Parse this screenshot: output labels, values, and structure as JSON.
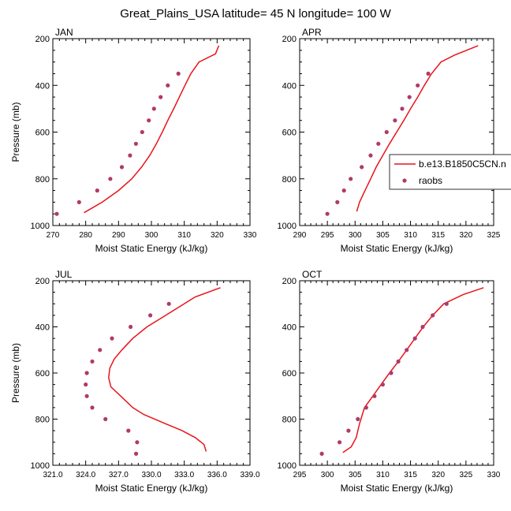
{
  "figure": {
    "title": "Great_Plains_USA  latitude= 45 N longitude= 100 W"
  },
  "legend": {
    "model_label": "b.e13.B1850C5CN.n",
    "obs_label": "raobs",
    "model_color": "#e8141b",
    "obs_color": "#b03a6a"
  },
  "chart_data": [
    {
      "type": "line",
      "panel": "JAN",
      "title": "JAN",
      "xlabel": "Moist Static Energy (kJ/kg)",
      "ylabel": "Pressure (mb)",
      "xlim": [
        270,
        330
      ],
      "ylim": [
        1000,
        200
      ],
      "y_reversed": true,
      "xticks": [
        270,
        280,
        290,
        300,
        310,
        320,
        330
      ],
      "xtick_labels": [
        "270",
        "280",
        "290",
        "300",
        "310",
        "320",
        "330"
      ],
      "yticks": [
        200,
        400,
        600,
        800,
        1000
      ],
      "ytick_labels": [
        "200",
        "400",
        "600",
        "800",
        "1000"
      ],
      "series": [
        {
          "name": "b.e13.B1850C5CN.n",
          "kind": "line",
          "points": [
            [
              279.5,
              945
            ],
            [
              285,
              900
            ],
            [
              290,
              850
            ],
            [
              294,
              800
            ],
            [
              297,
              750
            ],
            [
              299.5,
              700
            ],
            [
              301.5,
              650
            ],
            [
              303.3,
              600
            ],
            [
              305,
              550
            ],
            [
              306.8,
              500
            ],
            [
              308.5,
              450
            ],
            [
              310.2,
              400
            ],
            [
              312,
              350
            ],
            [
              314.5,
              300
            ],
            [
              319.5,
              265
            ],
            [
              320.5,
              230
            ]
          ]
        },
        {
          "name": "raobs",
          "kind": "scatter",
          "points": [
            [
              271.2,
              950
            ],
            [
              278,
              900
            ],
            [
              283.5,
              850
            ],
            [
              287.5,
              800
            ],
            [
              291,
              750
            ],
            [
              293.5,
              700
            ],
            [
              295.3,
              650
            ],
            [
              297.2,
              600
            ],
            [
              299.2,
              550
            ],
            [
              300.8,
              500
            ],
            [
              302.8,
              450
            ],
            [
              305,
              400
            ],
            [
              308.2,
              350
            ]
          ]
        }
      ]
    },
    {
      "type": "line",
      "panel": "APR",
      "title": "APR",
      "xlabel": "Moist Static Energy (kJ/kg)",
      "ylabel": "",
      "xlim": [
        290,
        325
      ],
      "ylim": [
        1000,
        200
      ],
      "y_reversed": true,
      "xticks": [
        290,
        295,
        300,
        305,
        310,
        315,
        320,
        325
      ],
      "xtick_labels": [
        "290",
        "295",
        "300",
        "305",
        "310",
        "315",
        "320",
        "325"
      ],
      "yticks": [
        200,
        400,
        600,
        800,
        1000
      ],
      "ytick_labels": [
        "200",
        "400",
        "600",
        "800",
        "1000"
      ],
      "series": [
        {
          "name": "b.e13.B1850C5CN.n",
          "kind": "line",
          "points": [
            [
              300.3,
              940
            ],
            [
              300.8,
              900
            ],
            [
              301.8,
              850
            ],
            [
              302.8,
              800
            ],
            [
              303.8,
              750
            ],
            [
              305,
              700
            ],
            [
              306.2,
              650
            ],
            [
              307.5,
              600
            ],
            [
              308.8,
              550
            ],
            [
              310,
              500
            ],
            [
              311.3,
              450
            ],
            [
              312.5,
              400
            ],
            [
              313.8,
              350
            ],
            [
              315.5,
              300
            ],
            [
              318,
              270
            ],
            [
              322.2,
              230
            ]
          ]
        },
        {
          "name": "raobs",
          "kind": "scatter",
          "points": [
            [
              295,
              950
            ],
            [
              296.8,
              900
            ],
            [
              298,
              850
            ],
            [
              299.2,
              800
            ],
            [
              301.2,
              750
            ],
            [
              302.8,
              700
            ],
            [
              304.2,
              650
            ],
            [
              305.7,
              600
            ],
            [
              307.2,
              550
            ],
            [
              308.5,
              500
            ],
            [
              309.8,
              450
            ],
            [
              311.3,
              400
            ],
            [
              313.2,
              350
            ]
          ]
        }
      ]
    },
    {
      "type": "line",
      "panel": "JUL",
      "title": "JUL",
      "xlabel": "Moist Static Energy (kJ/kg)",
      "ylabel": "Pressure (mb)",
      "xlim": [
        321,
        339
      ],
      "ylim": [
        1000,
        200
      ],
      "y_reversed": true,
      "xticks": [
        321,
        324,
        327,
        330,
        333,
        336,
        339
      ],
      "xtick_labels": [
        "321.0",
        "324.0",
        "327.0",
        "330.0",
        "333.0",
        "336.0",
        "339.0"
      ],
      "yticks": [
        200,
        400,
        600,
        800,
        1000
      ],
      "ytick_labels": [
        "200",
        "400",
        "600",
        "800",
        "1000"
      ],
      "series": [
        {
          "name": "b.e13.B1850C5CN.n",
          "kind": "line",
          "points": [
            [
              335,
              940
            ],
            [
              334.8,
              910
            ],
            [
              334,
              880
            ],
            [
              332.8,
              850
            ],
            [
              331.3,
              820
            ],
            [
              329.3,
              780
            ],
            [
              328.3,
              750
            ],
            [
              327.2,
              700
            ],
            [
              326.3,
              660
            ],
            [
              326.1,
              620
            ],
            [
              326.2,
              580
            ],
            [
              326.6,
              540
            ],
            [
              327.3,
              500
            ],
            [
              328.3,
              450
            ],
            [
              329.6,
              400
            ],
            [
              331.3,
              350
            ],
            [
              334,
              270
            ],
            [
              336.3,
              230
            ]
          ]
        },
        {
          "name": "raobs",
          "kind": "scatter",
          "points": [
            [
              328.6,
              950
            ],
            [
              328.7,
              900
            ],
            [
              327.9,
              850
            ],
            [
              325.8,
              800
            ],
            [
              324.6,
              750
            ],
            [
              324.1,
              700
            ],
            [
              324,
              650
            ],
            [
              324.1,
              600
            ],
            [
              324.6,
              550
            ],
            [
              325.3,
              500
            ],
            [
              326.4,
              450
            ],
            [
              328.1,
              400
            ],
            [
              329.9,
              350
            ],
            [
              331.6,
              300
            ]
          ]
        }
      ]
    },
    {
      "type": "line",
      "panel": "OCT",
      "title": "OCT",
      "xlabel": "Moist Static Energy (kJ/kg)",
      "ylabel": "",
      "xlim": [
        295,
        330
      ],
      "ylim": [
        1000,
        200
      ],
      "y_reversed": true,
      "xticks": [
        295,
        300,
        305,
        310,
        315,
        320,
        325,
        330
      ],
      "xtick_labels": [
        "295",
        "300",
        "305",
        "310",
        "315",
        "320",
        "325",
        "330"
      ],
      "yticks": [
        200,
        400,
        600,
        800,
        1000
      ],
      "ytick_labels": [
        "200",
        "400",
        "600",
        "800",
        "1000"
      ],
      "series": [
        {
          "name": "b.e13.B1850C5CN.n",
          "kind": "line",
          "points": [
            [
              302.8,
              945
            ],
            [
              304.3,
              920
            ],
            [
              305.2,
              880
            ],
            [
              305.8,
              820
            ],
            [
              306.7,
              750
            ],
            [
              308.2,
              700
            ],
            [
              309.7,
              650
            ],
            [
              311.2,
              600
            ],
            [
              312.8,
              550
            ],
            [
              314.3,
              500
            ],
            [
              315.8,
              450
            ],
            [
              317.3,
              400
            ],
            [
              319,
              350
            ],
            [
              321,
              300
            ],
            [
              324.5,
              260
            ],
            [
              328.2,
              230
            ]
          ]
        },
        {
          "name": "raobs",
          "kind": "scatter",
          "points": [
            [
              299,
              950
            ],
            [
              302.2,
              900
            ],
            [
              303.8,
              850
            ],
            [
              305.5,
              800
            ],
            [
              307,
              750
            ],
            [
              308.5,
              700
            ],
            [
              310,
              650
            ],
            [
              311.5,
              600
            ],
            [
              312.8,
              550
            ],
            [
              314.3,
              500
            ],
            [
              315.8,
              450
            ],
            [
              317.2,
              400
            ],
            [
              319,
              350
            ],
            [
              321.5,
              300
            ]
          ]
        }
      ]
    }
  ]
}
